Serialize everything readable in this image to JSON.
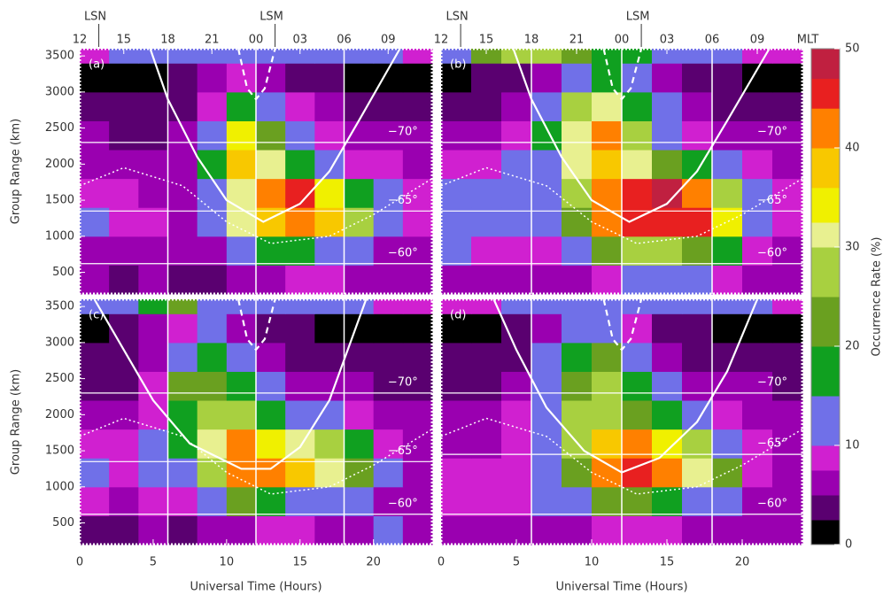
{
  "chart_data": [
    {
      "type": "heatmap",
      "title": "(a)",
      "x_bins": [
        0,
        2,
        4,
        6,
        8,
        10,
        12,
        14,
        16,
        18,
        20,
        22,
        24
      ],
      "y_bins": [
        200,
        600,
        1000,
        1400,
        1800,
        2200,
        2600,
        3000,
        3400,
        3600
      ],
      "values": [
        [
          5,
          4,
          5,
          3,
          4,
          5,
          6,
          8,
          8,
          6,
          5,
          5
        ],
        [
          7,
          6,
          6,
          5,
          6,
          12,
          15,
          15,
          12,
          10,
          6,
          6
        ],
        [
          10,
          8,
          8,
          7,
          12,
          30,
          38,
          40,
          38,
          25,
          10,
          8
        ],
        [
          8,
          8,
          6,
          6,
          12,
          32,
          42,
          45,
          35,
          15,
          10,
          8
        ],
        [
          6,
          6,
          5,
          5,
          15,
          38,
          30,
          18,
          10,
          8,
          8,
          6
        ],
        [
          5,
          4,
          4,
          5,
          14,
          35,
          22,
          12,
          8,
          6,
          6,
          5
        ],
        [
          3,
          3,
          3,
          4,
          8,
          18,
          14,
          8,
          5,
          4,
          3,
          3
        ],
        [
          2,
          2,
          2,
          3,
          5,
          8,
          6,
          4,
          3,
          2,
          2,
          2
        ],
        [
          8,
          10,
          10,
          10,
          10,
          10,
          10,
          10,
          10,
          10,
          10,
          8
        ]
      ],
      "xlim": [
        0,
        24
      ],
      "ylim": [
        200,
        3600
      ],
      "yticks": [
        500,
        1000,
        1500,
        2000,
        2500,
        3000,
        3500
      ],
      "ylabel": "Group Range (km)",
      "top_xticks": [
        {
          "value": 0,
          "label": "12"
        },
        {
          "value": 3,
          "label": "15"
        },
        {
          "value": 6,
          "label": "18"
        },
        {
          "value": 9,
          "label": "21"
        },
        {
          "value": 12,
          "label": "00"
        },
        {
          "value": 15,
          "label": "03"
        },
        {
          "value": 18,
          "label": "06"
        },
        {
          "value": 21,
          "label": "09"
        }
      ],
      "markers": [
        {
          "value": 1.3,
          "label": "LSN"
        },
        {
          "value": 13.3,
          "label": "LSM"
        }
      ],
      "grid_x": [
        6,
        12,
        18
      ],
      "lat_lines": [
        {
          "value": 2300,
          "label": "−70°"
        },
        {
          "value": 1350,
          "label": "−65°"
        },
        {
          "value": 620,
          "label": "−60°"
        }
      ],
      "curves": [
        {
          "style": "solid",
          "x": [
            4.8,
            6,
            8,
            10,
            12.5,
            15,
            17,
            19,
            21.8
          ],
          "y": [
            3600,
            2900,
            2100,
            1500,
            1200,
            1450,
            1900,
            2600,
            3600
          ]
        },
        {
          "style": "dashed",
          "x": [
            10.8,
            11.4,
            12,
            12.6,
            13.3
          ],
          "y": [
            3600,
            3050,
            2900,
            3050,
            3600
          ]
        },
        {
          "style": "dotted",
          "x": [
            0,
            3,
            7,
            10,
            13,
            17,
            20,
            24
          ],
          "y": [
            1700,
            1950,
            1700,
            1200,
            900,
            1000,
            1300,
            1800
          ]
        }
      ]
    },
    {
      "type": "heatmap",
      "title": "(b)",
      "x_bins": [
        0,
        2,
        4,
        6,
        8,
        10,
        12,
        14,
        16,
        18,
        20,
        22,
        24
      ],
      "y_bins": [
        200,
        600,
        1000,
        1400,
        1800,
        2200,
        2600,
        3000,
        3400,
        3600
      ],
      "values": [
        [
          6,
          5,
          6,
          5,
          6,
          8,
          10,
          10,
          10,
          8,
          6,
          6
        ],
        [
          10,
          8,
          8,
          8,
          12,
          20,
          25,
          25,
          22,
          15,
          8,
          6
        ],
        [
          12,
          10,
          10,
          12,
          22,
          40,
          45,
          46,
          44,
          35,
          12,
          8
        ],
        [
          10,
          10,
          10,
          12,
          25,
          42,
          46,
          47,
          42,
          25,
          12,
          8
        ],
        [
          8,
          8,
          10,
          14,
          30,
          38,
          32,
          22,
          15,
          10,
          8,
          6
        ],
        [
          6,
          6,
          8,
          15,
          30,
          40,
          25,
          14,
          8,
          6,
          6,
          5
        ],
        [
          4,
          4,
          6,
          10,
          25,
          30,
          18,
          10,
          6,
          4,
          4,
          4
        ],
        [
          2,
          3,
          4,
          6,
          14,
          18,
          12,
          6,
          4,
          3,
          2,
          2
        ],
        [
          10,
          20,
          25,
          25,
          22,
          18,
          15,
          12,
          12,
          10,
          8,
          8
        ]
      ],
      "xlim": [
        0,
        24
      ],
      "ylim": [
        200,
        3600
      ],
      "top_xticks": [
        {
          "value": 0,
          "label": "12"
        },
        {
          "value": 3,
          "label": "15"
        },
        {
          "value": 6,
          "label": "18"
        },
        {
          "value": 9,
          "label": "21"
        },
        {
          "value": 12,
          "label": "00"
        },
        {
          "value": 15,
          "label": "03"
        },
        {
          "value": 18,
          "label": "06"
        },
        {
          "value": 21,
          "label": "09"
        }
      ],
      "top_xlabel": "MLT",
      "markers": [
        {
          "value": 1.3,
          "label": "LSN"
        },
        {
          "value": 13.3,
          "label": "LSM"
        }
      ],
      "grid_x": [
        6,
        12,
        18
      ],
      "lat_lines": [
        {
          "value": 2300,
          "label": "−70°"
        },
        {
          "value": 1350,
          "label": "−65°"
        },
        {
          "value": 620,
          "label": "−60°"
        }
      ],
      "curves": [
        {
          "style": "solid",
          "x": [
            4.8,
            6,
            8,
            10,
            12.5,
            15,
            17,
            19,
            21.8
          ],
          "y": [
            3600,
            2900,
            2100,
            1500,
            1200,
            1450,
            1900,
            2600,
            3600
          ]
        },
        {
          "style": "dashed",
          "x": [
            10.8,
            11.4,
            12,
            12.6,
            13.3
          ],
          "y": [
            3600,
            3050,
            2900,
            3050,
            3600
          ]
        },
        {
          "style": "dotted",
          "x": [
            0,
            3,
            7,
            10,
            13,
            17,
            20,
            24
          ],
          "y": [
            1700,
            1950,
            1700,
            1200,
            900,
            1000,
            1300,
            1800
          ]
        }
      ]
    },
    {
      "type": "heatmap",
      "title": "(c)",
      "x_bins": [
        0,
        2,
        4,
        6,
        8,
        10,
        12,
        14,
        16,
        18,
        20,
        22,
        24
      ],
      "y_bins": [
        200,
        600,
        1000,
        1400,
        1800,
        2200,
        2600,
        3000,
        3400,
        3600
      ],
      "values": [
        [
          4,
          4,
          5,
          4,
          6,
          6,
          8,
          8,
          6,
          6,
          10,
          5
        ],
        [
          8,
          6,
          8,
          8,
          12,
          20,
          15,
          12,
          12,
          10,
          6,
          5
        ],
        [
          10,
          8,
          10,
          14,
          25,
          42,
          40,
          38,
          30,
          22,
          10,
          6
        ],
        [
          8,
          8,
          10,
          15,
          30,
          40,
          35,
          30,
          28,
          15,
          8,
          6
        ],
        [
          6,
          6,
          8,
          18,
          28,
          26,
          18,
          12,
          10,
          8,
          6,
          5
        ],
        [
          4,
          4,
          8,
          20,
          22,
          16,
          10,
          6,
          5,
          5,
          4,
          4
        ],
        [
          3,
          3,
          6,
          14,
          18,
          10,
          6,
          4,
          3,
          3,
          3,
          3
        ],
        [
          2,
          3,
          5,
          8,
          10,
          6,
          4,
          3,
          2,
          2,
          2,
          2
        ],
        [
          10,
          12,
          15,
          20,
          14,
          12,
          10,
          10,
          10,
          10,
          8,
          8
        ]
      ],
      "xlim": [
        0,
        24
      ],
      "ylim": [
        200,
        3600
      ],
      "xticks": [
        0,
        5,
        10,
        15,
        20
      ],
      "yticks": [
        500,
        1000,
        1500,
        2000,
        2500,
        3000,
        3500
      ],
      "xlabel": "Universal Time (Hours)",
      "ylabel": "Group Range (km)",
      "grid_x": [
        6,
        12,
        18
      ],
      "lat_lines": [
        {
          "value": 2300,
          "label": "−70°"
        },
        {
          "value": 1350,
          "label": "−65°"
        },
        {
          "value": 620,
          "label": "−60°"
        }
      ],
      "curves": [
        {
          "style": "solid",
          "x": [
            1,
            3,
            5,
            7.5,
            11,
            13,
            15,
            17,
            19.5
          ],
          "y": [
            3600,
            2900,
            2200,
            1600,
            1250,
            1250,
            1550,
            2200,
            3600
          ]
        },
        {
          "style": "dashed",
          "x": [
            10.8,
            11.4,
            12,
            12.6,
            13.3
          ],
          "y": [
            3600,
            3050,
            2900,
            3050,
            3600
          ]
        },
        {
          "style": "dotted",
          "x": [
            0,
            3,
            7,
            10,
            13,
            17,
            20,
            24
          ],
          "y": [
            1700,
            1950,
            1700,
            1200,
            900,
            1000,
            1300,
            1800
          ]
        }
      ]
    },
    {
      "type": "heatmap",
      "title": "(d)",
      "x_bins": [
        0,
        2,
        4,
        6,
        8,
        10,
        12,
        14,
        16,
        18,
        20,
        22,
        24
      ],
      "y_bins": [
        200,
        600,
        1000,
        1400,
        1800,
        2200,
        2600,
        3000,
        3400,
        3600
      ],
      "values": [
        [
          6,
          5,
          6,
          5,
          6,
          8,
          8,
          8,
          6,
          6,
          5,
          5
        ],
        [
          8,
          8,
          8,
          10,
          14,
          22,
          22,
          18,
          14,
          10,
          6,
          5
        ],
        [
          8,
          8,
          8,
          12,
          22,
          40,
          44,
          42,
          30,
          22,
          8,
          6
        ],
        [
          6,
          6,
          8,
          12,
          25,
          38,
          42,
          35,
          25,
          12,
          8,
          6
        ],
        [
          5,
          5,
          8,
          14,
          25,
          28,
          22,
          15,
          10,
          8,
          6,
          5
        ],
        [
          4,
          4,
          6,
          12,
          22,
          28,
          16,
          10,
          6,
          5,
          5,
          4
        ],
        [
          3,
          3,
          4,
          10,
          18,
          22,
          12,
          6,
          4,
          3,
          3,
          3
        ],
        [
          2,
          2,
          3,
          6,
          10,
          12,
          8,
          4,
          3,
          2,
          2,
          2
        ],
        [
          8,
          8,
          10,
          10,
          10,
          10,
          10,
          10,
          10,
          10,
          10,
          8
        ]
      ],
      "xlim": [
        0,
        24
      ],
      "ylim": [
        200,
        3600
      ],
      "xticks": [
        0,
        5,
        10,
        15,
        20
      ],
      "xlabel": "Universal Time (Hours)",
      "grid_x": [
        6,
        12,
        18
      ],
      "lat_lines": [
        {
          "value": 2300,
          "label": "−70°"
        },
        {
          "value": 1450,
          "label": "−65°"
        },
        {
          "value": 620,
          "label": "−60°"
        }
      ],
      "curves": [
        {
          "style": "solid",
          "x": [
            3.5,
            5,
            7,
            9.5,
            12,
            14.5,
            17,
            19,
            21
          ],
          "y": [
            3600,
            2900,
            2100,
            1500,
            1200,
            1400,
            1900,
            2600,
            3600
          ]
        },
        {
          "style": "dashed",
          "x": [
            10.8,
            11.4,
            12,
            12.6,
            13.3
          ],
          "y": [
            3600,
            3050,
            2900,
            3050,
            3600
          ]
        },
        {
          "style": "dotted",
          "x": [
            0,
            3,
            7,
            10,
            13,
            17,
            20,
            24
          ],
          "y": [
            1700,
            1950,
            1700,
            1200,
            900,
            1000,
            1300,
            1800
          ]
        }
      ]
    },
    {
      "type": "colorbar",
      "label": "Occurrence Rate (%)",
      "clim": [
        0,
        50
      ],
      "ticks": [
        0,
        10,
        20,
        30,
        40,
        50
      ],
      "colormap": [
        {
          "value": 0,
          "color": "#000000"
        },
        {
          "value": 2.5,
          "color": "#5a0070"
        },
        {
          "value": 5,
          "color": "#9a00b0"
        },
        {
          "value": 7.5,
          "color": "#d020d0"
        },
        {
          "value": 10,
          "color": "#7070e8"
        },
        {
          "value": 15,
          "color": "#10a020"
        },
        {
          "value": 20,
          "color": "#6aa020"
        },
        {
          "value": 25,
          "color": "#a8d040"
        },
        {
          "value": 30,
          "color": "#e8f090"
        },
        {
          "value": 32.5,
          "color": "#f0f000"
        },
        {
          "value": 36,
          "color": "#f8c800"
        },
        {
          "value": 40,
          "color": "#ff8000"
        },
        {
          "value": 44,
          "color": "#e82020"
        },
        {
          "value": 47,
          "color": "#c02040"
        }
      ]
    }
  ]
}
